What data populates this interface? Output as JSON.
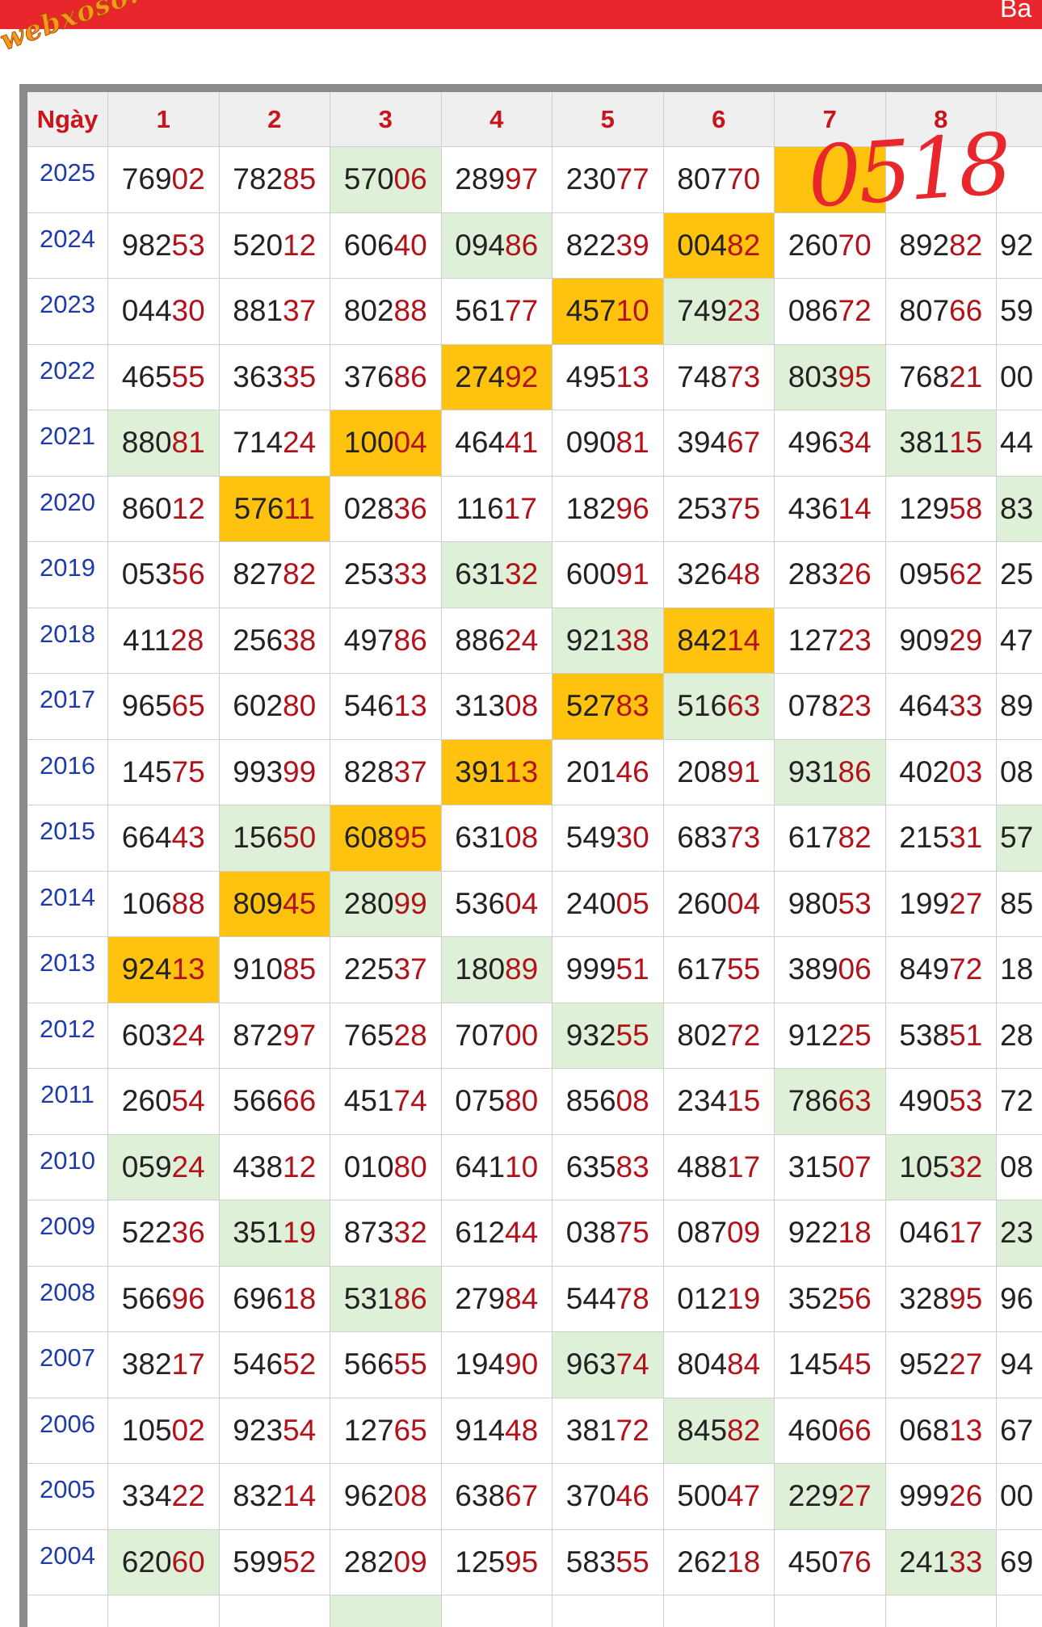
{
  "header": {
    "right_text": "Ba",
    "watermark": "webxoso.net"
  },
  "annotation": "0518",
  "table": {
    "columns": [
      "Ngày",
      "1",
      "2",
      "3",
      "4",
      "5",
      "6",
      "7",
      "8"
    ],
    "rows": [
      {
        "year": "2025",
        "cells": [
          "76902",
          "78285",
          "57006",
          "28997",
          "23077",
          "80770",
          null,
          null,
          null
        ]
      },
      {
        "year": "2024",
        "cells": [
          "98253",
          "52012",
          "60640",
          "09486",
          "82239",
          "00482",
          "26070",
          "89282",
          "92"
        ]
      },
      {
        "year": "2023",
        "cells": [
          "04430",
          "88137",
          "80288",
          "56177",
          "45710",
          "74923",
          "08672",
          "80766",
          "59"
        ]
      },
      {
        "year": "2022",
        "cells": [
          "46555",
          "36335",
          "37686",
          "27492",
          "49513",
          "74873",
          "80395",
          "76821",
          "00"
        ]
      },
      {
        "year": "2021",
        "cells": [
          "88081",
          "71424",
          "10004",
          "46441",
          "09081",
          "39467",
          "49634",
          "38115",
          "44"
        ]
      },
      {
        "year": "2020",
        "cells": [
          "86012",
          "57611",
          "02836",
          "11617",
          "18296",
          "25375",
          "43614",
          "12958",
          "83"
        ]
      },
      {
        "year": "2019",
        "cells": [
          "05356",
          "82782",
          "25333",
          "63132",
          "60091",
          "32648",
          "28326",
          "09562",
          "25"
        ]
      },
      {
        "year": "2018",
        "cells": [
          "41128",
          "25638",
          "49786",
          "88624",
          "92138",
          "84214",
          "12723",
          "90929",
          "47"
        ]
      },
      {
        "year": "2017",
        "cells": [
          "96565",
          "60280",
          "54613",
          "31308",
          "52783",
          "51663",
          "07823",
          "46433",
          "89"
        ]
      },
      {
        "year": "2016",
        "cells": [
          "14575",
          "99399",
          "82837",
          "39113",
          "20146",
          "20891",
          "93186",
          "40203",
          "08"
        ]
      },
      {
        "year": "2015",
        "cells": [
          "66443",
          "15650",
          "60895",
          "63108",
          "54930",
          "68373",
          "61782",
          "21531",
          "57"
        ]
      },
      {
        "year": "2014",
        "cells": [
          "10688",
          "80945",
          "28099",
          "53604",
          "24005",
          "26004",
          "98053",
          "19927",
          "85"
        ]
      },
      {
        "year": "2013",
        "cells": [
          "92413",
          "91085",
          "22537",
          "18089",
          "99951",
          "61755",
          "38906",
          "84972",
          "18"
        ]
      },
      {
        "year": "2012",
        "cells": [
          "60324",
          "87297",
          "76528",
          "70700",
          "93255",
          "80272",
          "91225",
          "53851",
          "28"
        ]
      },
      {
        "year": "2011",
        "cells": [
          "26054",
          "56666",
          "45174",
          "07580",
          "85608",
          "23415",
          "78663",
          "49053",
          "72"
        ]
      },
      {
        "year": "2010",
        "cells": [
          "05924",
          "43812",
          "01080",
          "64110",
          "63583",
          "48817",
          "31507",
          "10532",
          "08"
        ]
      },
      {
        "year": "2009",
        "cells": [
          "52236",
          "35119",
          "87332",
          "61244",
          "03875",
          "08709",
          "92218",
          "04617",
          "23"
        ]
      },
      {
        "year": "2008",
        "cells": [
          "56696",
          "69618",
          "53186",
          "27984",
          "54478",
          "01219",
          "35256",
          "32895",
          "96"
        ]
      },
      {
        "year": "2007",
        "cells": [
          "38217",
          "54652",
          "56655",
          "19490",
          "96374",
          "80484",
          "14545",
          "95227",
          "94"
        ]
      },
      {
        "year": "2006",
        "cells": [
          "10502",
          "92354",
          "12765",
          "91448",
          "38172",
          "84582",
          "46066",
          "06813",
          "67"
        ]
      },
      {
        "year": "2005",
        "cells": [
          "33422",
          "83214",
          "96208",
          "63867",
          "37046",
          "50047",
          "22927",
          "99926",
          "00"
        ]
      },
      {
        "year": "2004",
        "cells": [
          "62060",
          "59952",
          "28209",
          "12595",
          "58355",
          "26218",
          "45076",
          "24133",
          "69"
        ]
      }
    ]
  }
}
